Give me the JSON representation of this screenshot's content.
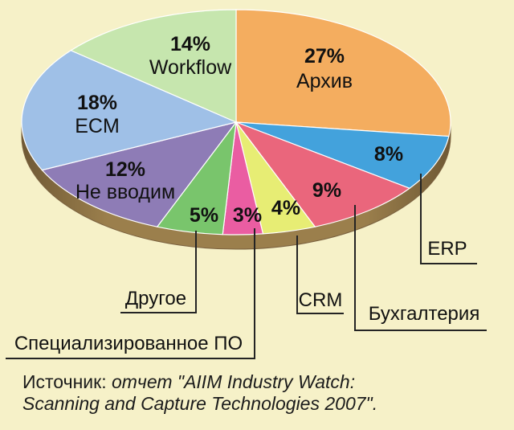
{
  "chart_data": {
    "type": "pie",
    "title": "",
    "slices": [
      {
        "key": "archive",
        "label": "Архив",
        "value": 27,
        "value_text": "27%",
        "color": "#f4ad5f"
      },
      {
        "key": "erp",
        "label": "ERP",
        "value": 8,
        "value_text": "8%",
        "color": "#43a2dc"
      },
      {
        "key": "accounting",
        "label": "Бухгалтерия",
        "value": 9,
        "value_text": "9%",
        "color": "#ea667c"
      },
      {
        "key": "crm",
        "label": "CRM",
        "value": 4,
        "value_text": "4%",
        "color": "#e7ed74"
      },
      {
        "key": "specialized",
        "label": "Специализированное ПО",
        "value": 3,
        "value_text": "3%",
        "color": "#ea5da2"
      },
      {
        "key": "other",
        "label": "Другое",
        "value": 5,
        "value_text": "5%",
        "color": "#79c56c"
      },
      {
        "key": "not_introducing",
        "label": "Не вводим",
        "value": 12,
        "value_text": "12%",
        "color": "#8e7cb6"
      },
      {
        "key": "ecm",
        "label": "ECM",
        "value": 18,
        "value_text": "18%",
        "color": "#9fc0e7"
      },
      {
        "key": "workflow",
        "label": "Workflow",
        "value": 14,
        "value_text": "14%",
        "color": "#c6e6ae"
      }
    ],
    "side_color": "#9b7f4c",
    "side_shadow_color": "#6f5935",
    "leader_color": "#242424"
  },
  "source": {
    "prefix": "Источник: ",
    "line1_italic": "отчет \"AIIM Industry Watch:",
    "line2_italic": "Scanning and Capture Technologies 2007\"."
  }
}
